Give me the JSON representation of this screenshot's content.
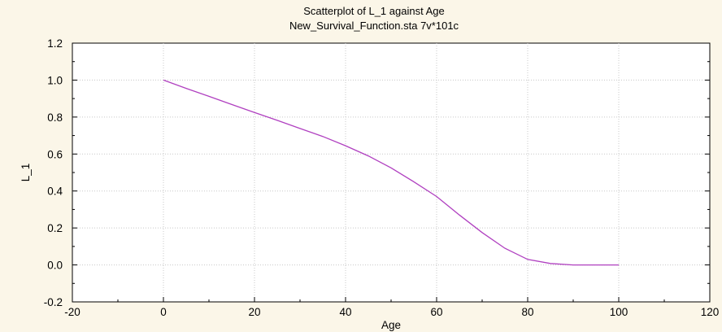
{
  "chart_data": {
    "type": "line",
    "title": "Scatterplot of L_1 against Age",
    "subtitle": "New_Survival_Function.sta 7v*101c",
    "xlabel": "Age",
    "ylabel": "L_1",
    "xlim": [
      -20,
      120
    ],
    "ylim": [
      -0.2,
      1.2
    ],
    "xticks": [
      -20,
      0,
      20,
      40,
      60,
      80,
      100,
      120
    ],
    "yticks": [
      -0.2,
      0.0,
      0.2,
      0.4,
      0.6,
      0.8,
      1.0,
      1.2
    ],
    "xtick_labels": [
      "-20",
      "0",
      "20",
      "40",
      "60",
      "80",
      "100",
      "120"
    ],
    "ytick_labels": [
      "-0.2",
      "0.0",
      "0.2",
      "0.4",
      "0.6",
      "0.8",
      "1.0",
      "1.2"
    ],
    "grid": true,
    "series": [
      {
        "color": "#b040c0",
        "x": [
          0,
          5,
          10,
          15,
          20,
          25,
          30,
          35,
          40,
          45,
          50,
          55,
          60,
          65,
          70,
          75,
          80,
          85,
          90,
          95,
          100
        ],
        "y": [
          1.0,
          0.955,
          0.912,
          0.868,
          0.825,
          0.782,
          0.738,
          0.695,
          0.645,
          0.59,
          0.525,
          0.45,
          0.37,
          0.27,
          0.175,
          0.09,
          0.03,
          0.008,
          0.0,
          0.0,
          0.0
        ]
      }
    ]
  }
}
